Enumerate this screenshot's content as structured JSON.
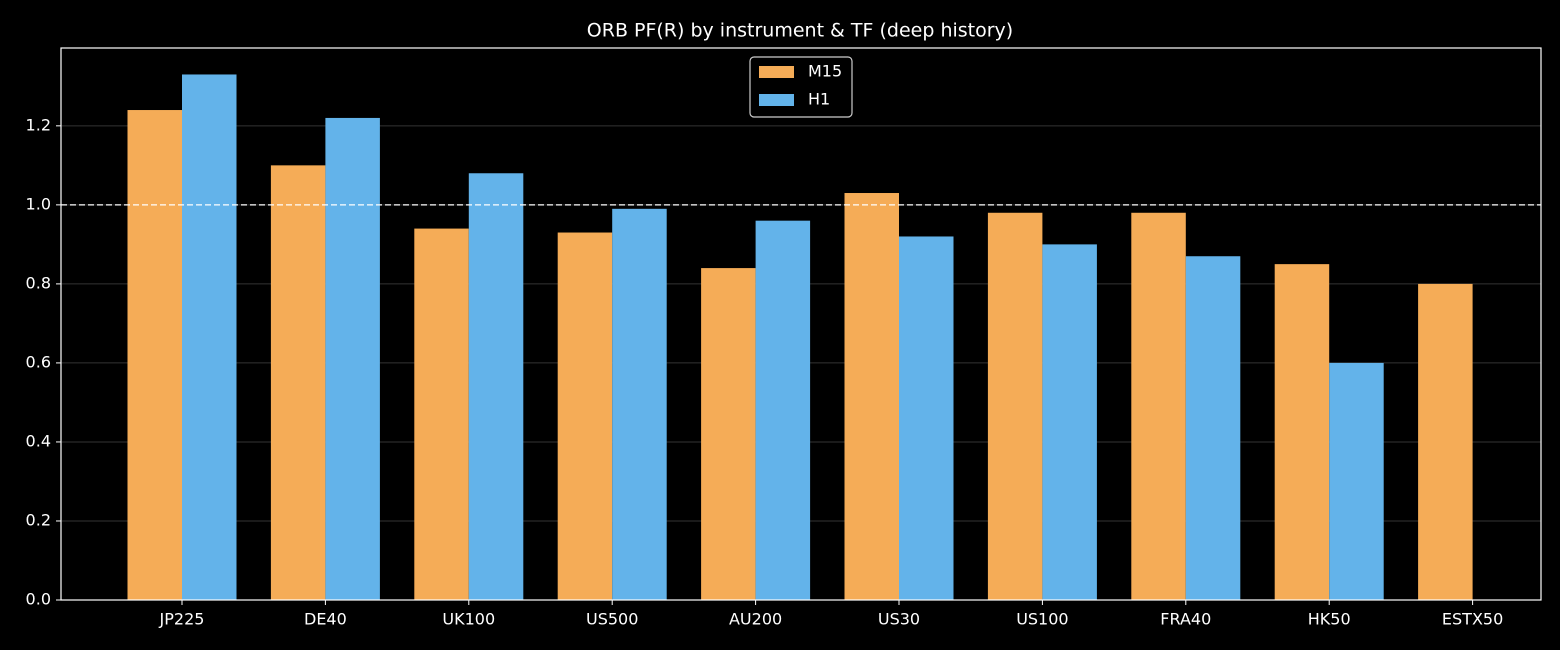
{
  "chart_data": {
    "type": "bar",
    "title": "ORB PF(R) by instrument & TF (deep history)",
    "categories": [
      "JP225",
      "DE40",
      "UK100",
      "US500",
      "AU200",
      "US30",
      "US100",
      "FRA40",
      "HK50",
      "ESTX50"
    ],
    "series": [
      {
        "name": "M15",
        "color": "#f5ac57",
        "values": [
          1.24,
          1.1,
          0.94,
          0.93,
          0.84,
          1.03,
          0.98,
          0.98,
          0.85,
          0.8
        ]
      },
      {
        "name": "H1",
        "color": "#63b3ea",
        "values": [
          1.33,
          1.22,
          1.08,
          0.99,
          0.96,
          0.92,
          0.9,
          0.87,
          0.6,
          null
        ]
      }
    ],
    "ylim": [
      0,
      1.397
    ],
    "yticks": [
      {
        "value": 0,
        "label": "0.0"
      },
      0.2,
      0.4,
      0.6,
      0.8,
      {
        "value": 1,
        "label": "1.0"
      },
      1.2
    ],
    "reference_line": 1,
    "grid": true,
    "legend": "upper center"
  }
}
